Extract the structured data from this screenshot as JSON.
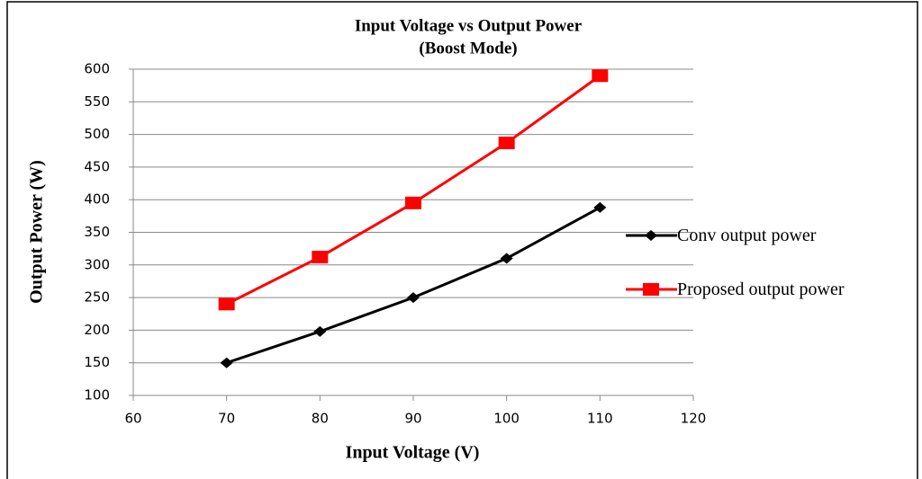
{
  "chart_data": {
    "type": "line",
    "title": "Input Voltage vs Output Power",
    "subtitle": "(Boost Mode)",
    "x_label": "Input Voltage (V)",
    "y_label": "Output Power (W)",
    "x": [
      70,
      80,
      90,
      100,
      110
    ],
    "series": [
      {
        "name": "Conv output power",
        "color": "#000000",
        "marker": "diamond",
        "values": [
          150,
          198,
          250,
          310,
          388
        ]
      },
      {
        "name": "Proposed output power",
        "color": "#ff0000",
        "marker": "square",
        "values": [
          240,
          312,
          395,
          487,
          590
        ]
      }
    ],
    "xlim": [
      60,
      120
    ],
    "xticks": [
      60,
      70,
      80,
      90,
      100,
      110,
      120
    ],
    "ylim": [
      100,
      600
    ],
    "yticks": [
      100,
      150,
      200,
      250,
      300,
      350,
      400,
      450,
      500,
      550,
      600
    ],
    "grid": true,
    "legend": "right"
  }
}
